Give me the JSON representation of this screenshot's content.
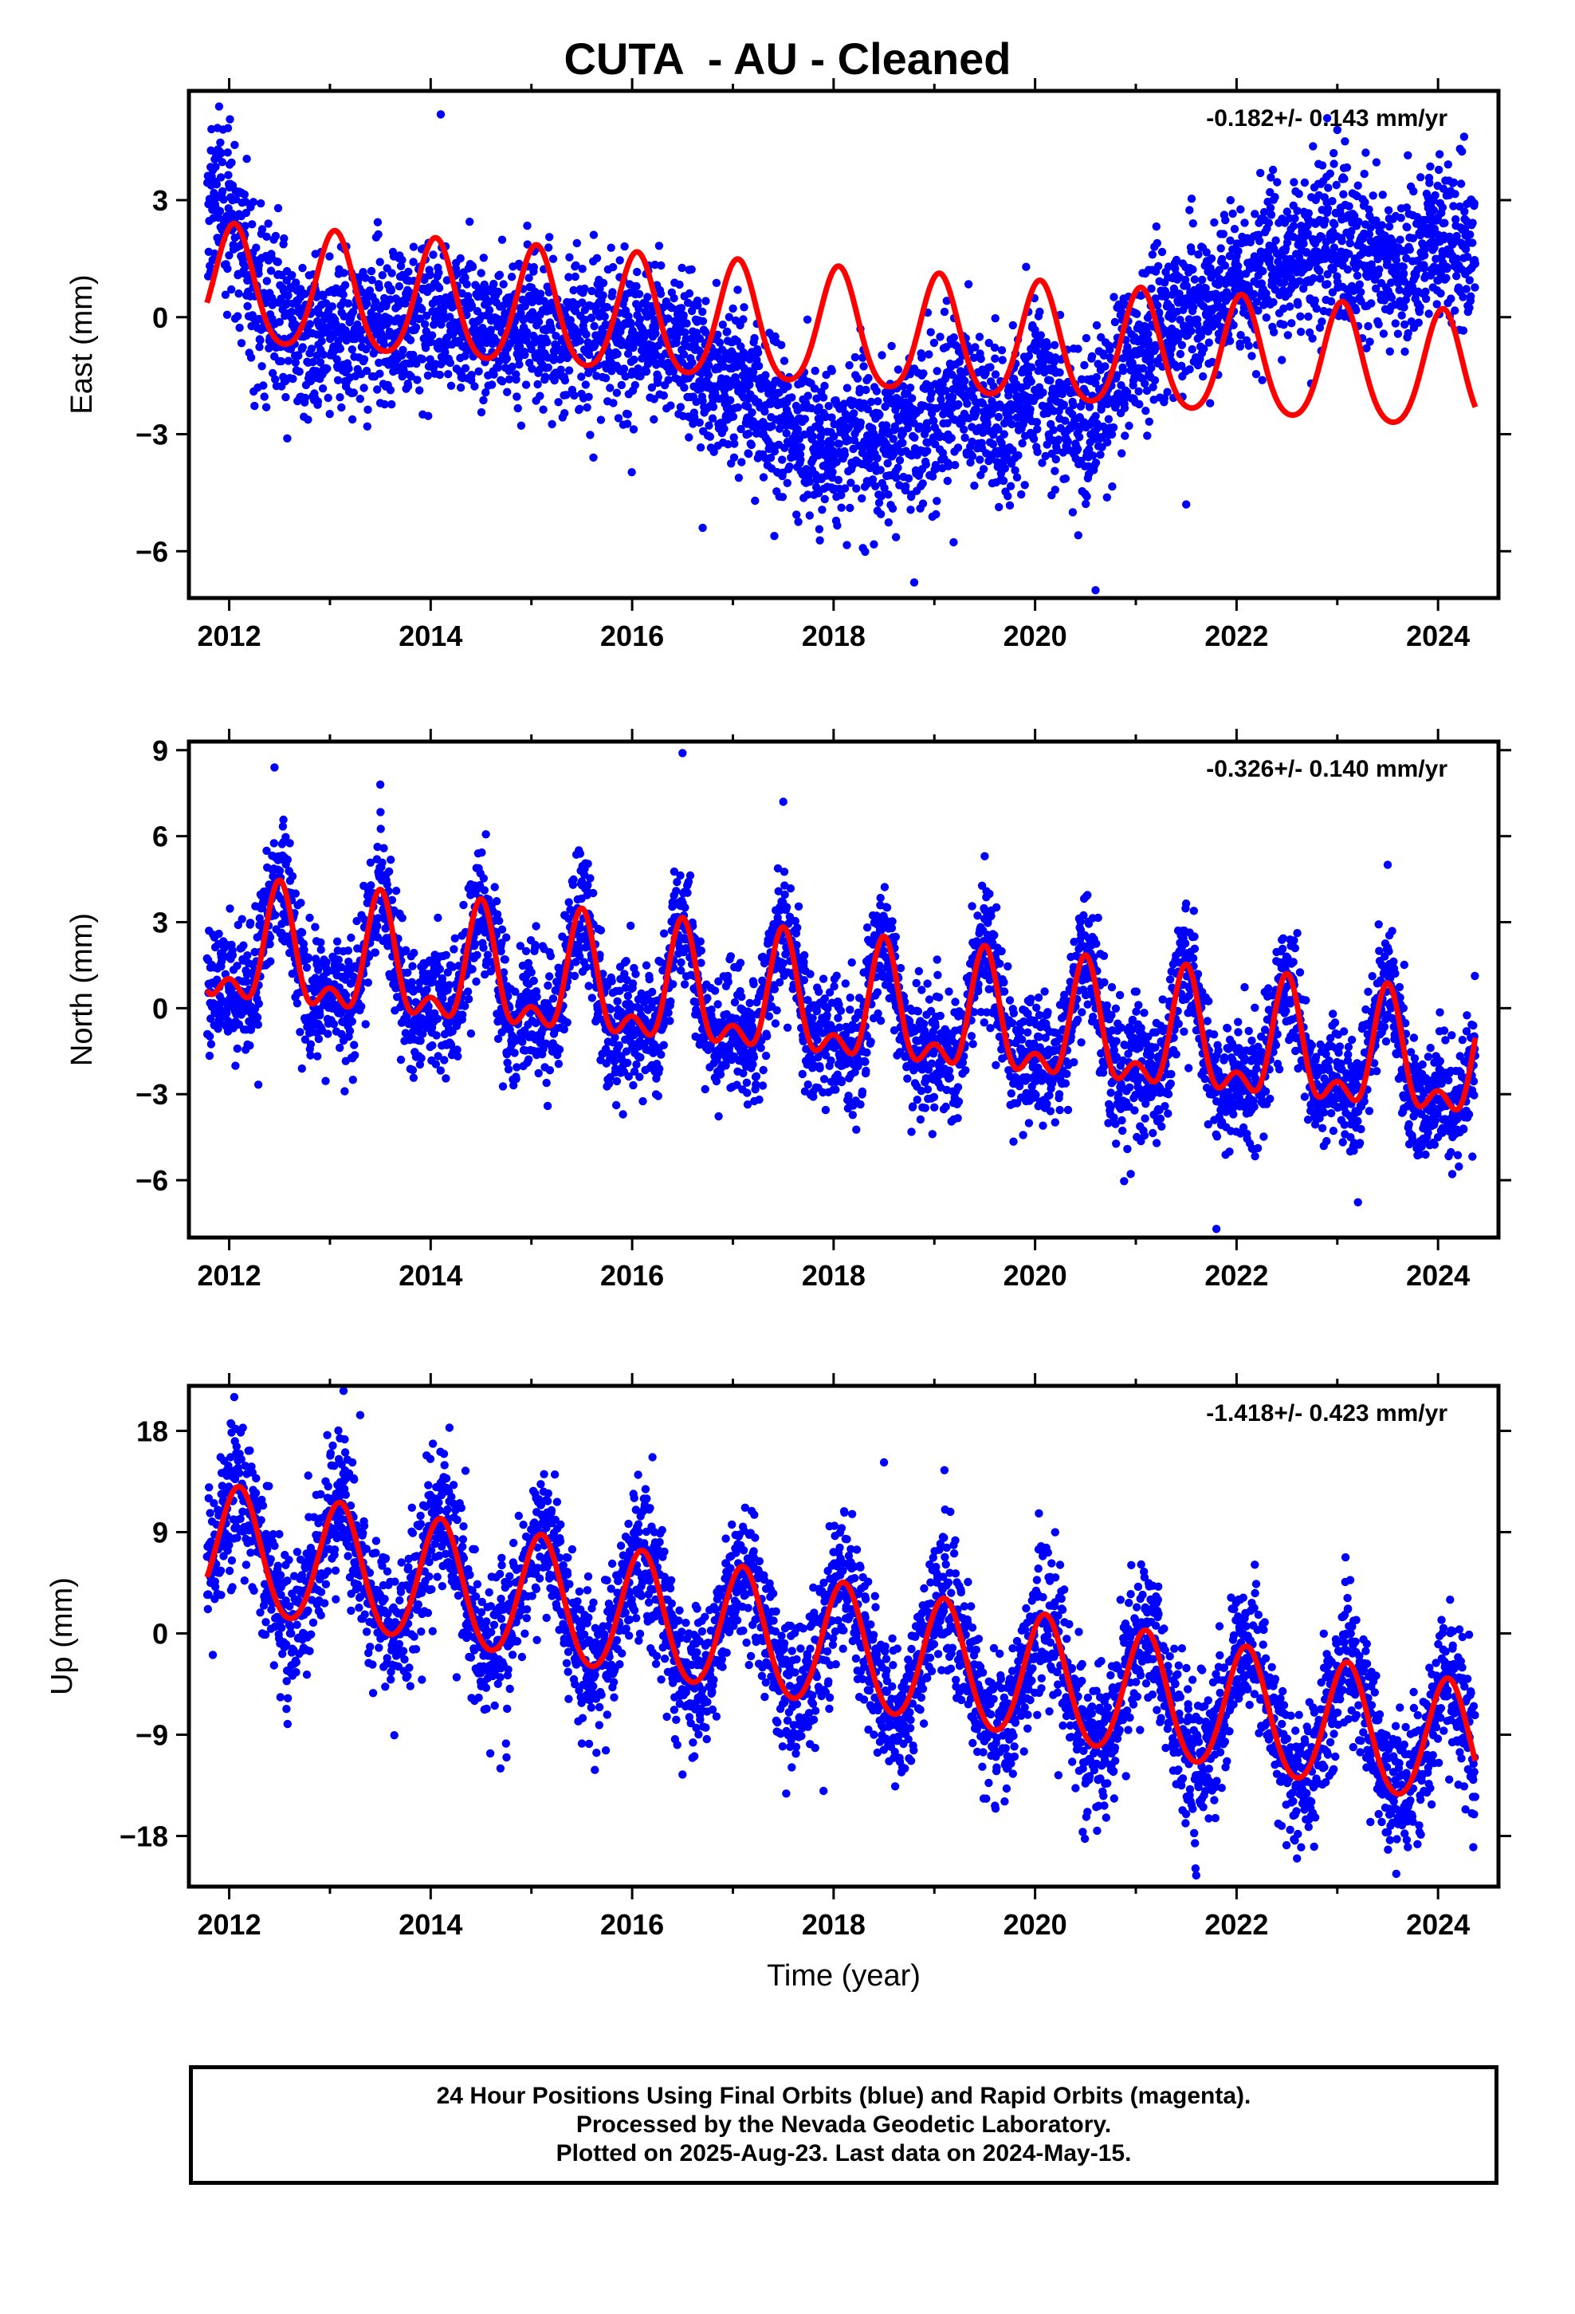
{
  "title": "CUTA  - AU - Cleaned",
  "footer": {
    "line1": "24 Hour Positions Using Final Orbits (blue) and Rapid Orbits (magenta).",
    "line2": "Processed by the Nevada Geodetic Laboratory.",
    "line3": "Plotted on 2025-Aug-23. Last data on 2024-May-15."
  },
  "colors": {
    "final_orbit_points": "#0000ff",
    "model_fit": "#ff0000",
    "frame": "#000000"
  },
  "chart_data": [
    {
      "type": "scatter",
      "component": "east",
      "ylabel": "East (mm)",
      "xlabel": "",
      "rate_label": "-0.182+/- 0.143 mm/yr",
      "xlim": [
        2011.6,
        2024.6
      ],
      "ylim": [
        -7.2,
        5.8
      ],
      "xticks": [
        2012,
        2014,
        2016,
        2018,
        2020,
        2022,
        2024
      ],
      "yticks": [
        -6,
        -3,
        0,
        3
      ],
      "ytick_labels": [
        "−6",
        "−3",
        "0",
        "3"
      ],
      "x_start": 2011.78,
      "x_end": 2024.37,
      "fit": {
        "offset": 0.75,
        "trend": -0.182,
        "amp_annual": 1.5,
        "amp_semiannual": 0.2,
        "phase_peak": 0.05
      },
      "anchors": [
        [
          2011.8,
          3.0
        ],
        [
          2012.0,
          2.8
        ],
        [
          2012.3,
          0.2
        ],
        [
          2012.8,
          -0.6
        ],
        [
          2013.5,
          -0.1
        ],
        [
          2014.5,
          -0.1
        ],
        [
          2015.5,
          -0.6
        ],
        [
          2016.3,
          -0.6
        ],
        [
          2016.8,
          -1.4
        ],
        [
          2017.3,
          -2.2
        ],
        [
          2017.7,
          -3.2
        ],
        [
          2018.4,
          -3.2
        ],
        [
          2018.8,
          -3.0
        ],
        [
          2019.3,
          -1.8
        ],
        [
          2019.7,
          -3.2
        ],
        [
          2020.0,
          -1.6
        ],
        [
          2020.5,
          -3.0
        ],
        [
          2020.8,
          -1.6
        ],
        [
          2021.2,
          -0.4
        ],
        [
          2021.7,
          0.3
        ],
        [
          2022.0,
          1.0
        ],
        [
          2022.6,
          1.6
        ],
        [
          2023.0,
          2.0
        ],
        [
          2023.6,
          1.0
        ],
        [
          2024.0,
          1.9
        ],
        [
          2024.4,
          1.5
        ]
      ],
      "noise": 1.0,
      "outliers": [
        [
          2011.9,
          5.4
        ],
        [
          2013.5,
          -2.2
        ],
        [
          2014.1,
          5.2
        ],
        [
          2018.8,
          -6.8
        ],
        [
          2020.6,
          -7.0
        ],
        [
          2016.7,
          -5.4
        ],
        [
          2021.5,
          -4.8
        ],
        [
          2022.9,
          5.1
        ],
        [
          2023.0,
          4.8
        ]
      ]
    },
    {
      "type": "scatter",
      "component": "north",
      "ylabel": "North (mm)",
      "xlabel": "",
      "rate_label": "-0.326+/- 0.140 mm/yr",
      "xlim": [
        2011.6,
        2024.6
      ],
      "ylim": [
        -8.0,
        9.3
      ],
      "xticks": [
        2012,
        2014,
        2016,
        2018,
        2020,
        2022,
        2024
      ],
      "yticks": [
        -6,
        -3,
        0,
        3,
        6,
        9
      ],
      "ytick_labels": [
        "−6",
        "−3",
        "0",
        "3",
        "6",
        "9"
      ],
      "x_start": 2011.78,
      "x_end": 2024.37,
      "fit": {
        "offset": 1.9,
        "trend": -0.326,
        "amp_annual": 1.8,
        "amp_semiannual": 1.0,
        "phase_peak": 0.5
      },
      "anchors": null,
      "noise": 1.1,
      "outliers": [
        [
          2012.45,
          8.4
        ],
        [
          2013.5,
          7.8
        ],
        [
          2016.5,
          8.9
        ],
        [
          2017.5,
          7.2
        ],
        [
          2021.8,
          -7.7
        ],
        [
          2019.5,
          5.3
        ],
        [
          2023.5,
          5.0
        ]
      ]
    },
    {
      "type": "scatter",
      "component": "up",
      "ylabel": "Up (mm)",
      "xlabel": "Time (year)",
      "rate_label": "-1.418+/- 0.423 mm/yr",
      "xlim": [
        2011.6,
        2024.6
      ],
      "ylim": [
        -22.5,
        22.0
      ],
      "xticks": [
        2012,
        2014,
        2016,
        2018,
        2020,
        2022,
        2024
      ],
      "yticks": [
        -18,
        -9,
        0,
        9,
        18
      ],
      "ytick_labels": [
        "−18",
        "−9",
        "0",
        "9",
        "18"
      ],
      "x_start": 2011.78,
      "x_end": 2024.37,
      "fit": {
        "offset": 7.6,
        "trend": -1.418,
        "amp_annual": 5.5,
        "amp_semiannual": 0.4,
        "phase_peak": 0.1
      },
      "anchors": null,
      "noise": 3.2,
      "outliers": [
        [
          2012.05,
          21.0
        ],
        [
          2013.3,
          19.4
        ],
        [
          2017.9,
          -14.0
        ],
        [
          2021.6,
          -21.5
        ],
        [
          2022.6,
          -20.0
        ],
        [
          2023.7,
          -19.0
        ],
        [
          2024.35,
          -19.0
        ],
        [
          2018.5,
          15.2
        ],
        [
          2019.1,
          14.5
        ]
      ]
    }
  ]
}
